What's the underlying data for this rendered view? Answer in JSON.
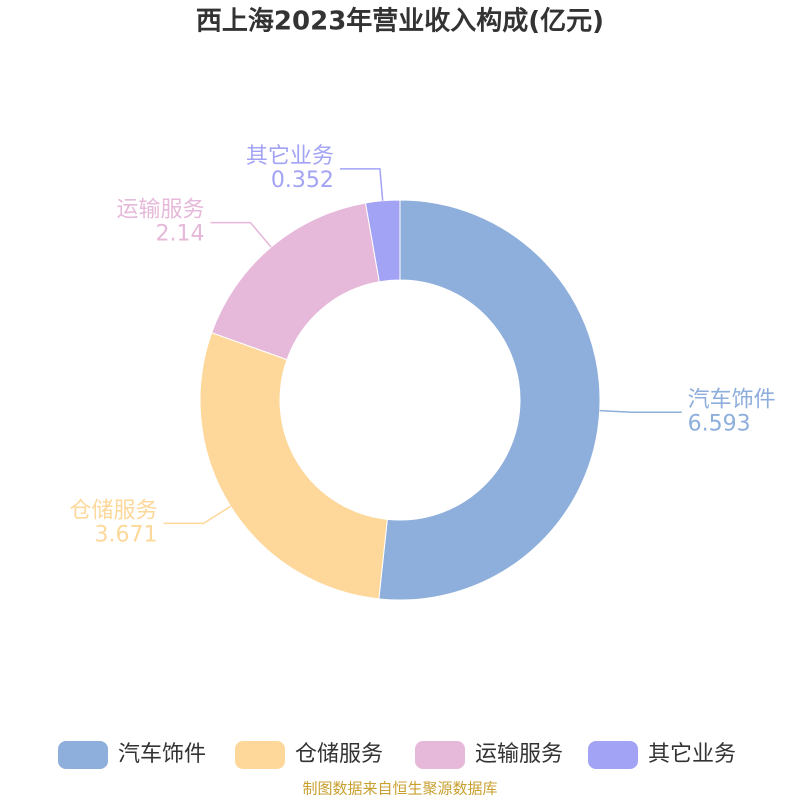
{
  "chart_data": {
    "type": "donut",
    "title": "西上海2023年营业收入构成(亿元)",
    "categories": [
      "汽车饰件",
      "仓储服务",
      "运输服务",
      "其它业务"
    ],
    "values": [
      6.593,
      3.671,
      2.14,
      0.352
    ],
    "colors": [
      "#8eaedb",
      "#fdd89a",
      "#e6b8d9",
      "#a3a3f5"
    ],
    "legend": "bottom",
    "source": "制图数据来自恒生聚源数据库"
  }
}
